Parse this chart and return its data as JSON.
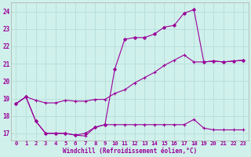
{
  "background_color": "#d0f0eb",
  "line_color": "#990099",
  "grid_color": "#b8e0db",
  "xlabel": "Windchill (Refroidissement éolien,°C)",
  "xlabel_color": "#990099",
  "tick_color": "#990099",
  "ylim": [
    16.6,
    24.5
  ],
  "xlim": [
    -0.5,
    23.5
  ],
  "yticks": [
    17,
    18,
    19,
    20,
    21,
    22,
    23,
    24
  ],
  "xtick_labels": [
    "0",
    "1",
    "2",
    "3",
    "4",
    "5",
    "6",
    "7",
    "8",
    "9",
    "10",
    "11",
    "12",
    "13",
    "14",
    "15",
    "16",
    "17",
    "18",
    "19",
    "20",
    "21",
    "22",
    "23"
  ],
  "line1_x": [
    0,
    1,
    2,
    3,
    4,
    5,
    6,
    7,
    8,
    9,
    10,
    11,
    12,
    13,
    14,
    15,
    16,
    17,
    18,
    19,
    20,
    21,
    22,
    23
  ],
  "line1_y": [
    18.7,
    19.1,
    18.9,
    18.75,
    18.75,
    18.9,
    18.85,
    18.85,
    18.95,
    18.95,
    19.3,
    19.5,
    19.9,
    20.2,
    20.5,
    20.9,
    21.2,
    21.5,
    21.1,
    21.1,
    21.15,
    21.1,
    21.15,
    21.2
  ],
  "line2_x": [
    0,
    1,
    2,
    3,
    4,
    5,
    6,
    7,
    8,
    9,
    10,
    11,
    12,
    13,
    14,
    15,
    16,
    17,
    18,
    19,
    20,
    21,
    22,
    23
  ],
  "line2_y": [
    18.7,
    19.1,
    17.7,
    17.0,
    17.0,
    17.0,
    16.9,
    16.85,
    17.35,
    17.5,
    17.5,
    17.5,
    17.5,
    17.5,
    17.5,
    17.5,
    17.5,
    17.5,
    17.8,
    17.3,
    17.2,
    17.2,
    17.2,
    17.2
  ],
  "line3_x": [
    0,
    1,
    2,
    3,
    4,
    5,
    6,
    7,
    8,
    9,
    10,
    11,
    12,
    13,
    14,
    15,
    16,
    17,
    18,
    19,
    20,
    21,
    22,
    23
  ],
  "line3_y": [
    18.7,
    19.1,
    17.7,
    17.0,
    17.0,
    17.0,
    16.9,
    17.0,
    17.35,
    17.5,
    20.7,
    22.4,
    22.5,
    22.5,
    22.7,
    23.1,
    23.2,
    23.9,
    24.1,
    21.1,
    21.15,
    21.1,
    21.15,
    21.2
  ]
}
